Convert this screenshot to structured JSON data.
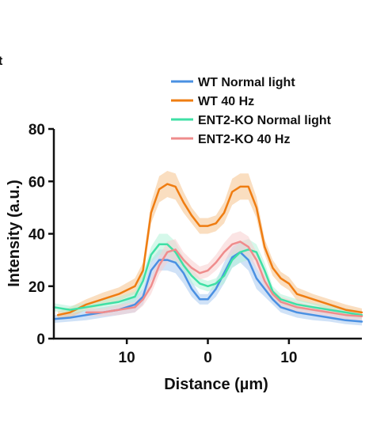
{
  "panel_mark": "t",
  "chart_data": {
    "type": "line",
    "xlabel": "Distance (µm)",
    "ylabel": "Intensity (a.u.)",
    "xlim": [
      -19,
      19
    ],
    "ylim": [
      0,
      80
    ],
    "x_ticks": [
      -10,
      0,
      10
    ],
    "x_tick_labels": [
      "10",
      "0",
      "10"
    ],
    "y_ticks": [
      0,
      20,
      40,
      60,
      80
    ],
    "y_tick_labels": [
      "0",
      "20",
      "40",
      "60",
      "80"
    ],
    "grid": false,
    "legend_position": "top-right",
    "x": [
      -19,
      -17,
      -15,
      -13,
      -11,
      -9,
      -8,
      -7,
      -6,
      -5,
      -4,
      -3,
      -2,
      -1,
      0,
      1,
      2,
      3,
      4,
      5,
      6,
      7,
      8,
      9,
      10,
      11,
      13,
      15,
      17,
      19
    ],
    "series": [
      {
        "name": "WT Normal light",
        "color": "#4a90e2",
        "band_color": "#a9cbf1",
        "values": [
          7.5,
          8,
          9,
          10,
          11,
          13,
          16,
          26,
          30,
          30,
          29,
          25,
          19,
          15,
          15,
          19,
          25,
          31,
          33,
          30,
          23,
          19,
          15,
          12,
          11,
          10,
          9,
          8,
          7,
          6.5
        ],
        "spread": [
          1.5,
          1.5,
          2,
          2,
          2,
          3,
          3,
          4,
          4,
          4,
          4,
          4,
          3,
          2,
          2,
          3,
          4,
          4,
          4,
          4,
          4,
          3,
          2,
          2,
          2,
          2,
          2,
          1.5,
          1.5,
          1.5
        ]
      },
      {
        "name": "WT 40 Hz",
        "color": "#ef7d12",
        "band_color": "#f6c28c",
        "values": [
          9,
          10,
          13,
          15,
          17,
          20,
          26,
          48,
          57,
          59,
          58,
          52,
          47,
          43,
          43,
          44,
          48,
          56,
          58,
          58,
          50,
          35,
          27,
          23,
          21,
          17,
          15,
          13,
          11,
          10
        ],
        "spread": [
          1.5,
          2,
          2,
          2.5,
          2.5,
          3,
          3,
          4,
          5,
          5,
          5,
          4,
          3,
          3,
          3,
          3,
          4,
          5,
          5,
          5,
          4,
          3,
          3,
          2.5,
          2.5,
          2.5,
          2,
          2,
          2,
          1.5
        ],
        "x_start": -18.5
      },
      {
        "name": "ENT2-KO Normal light",
        "color": "#3fe0a5",
        "band_color": "#b3f2d9",
        "values": [
          12,
          11,
          12,
          13,
          14,
          16,
          22,
          32,
          36,
          36,
          33,
          28,
          24,
          21,
          20,
          21,
          24,
          30,
          33,
          34,
          33,
          26,
          18,
          15,
          14,
          13,
          12,
          11,
          10,
          9
        ],
        "spread": [
          1.5,
          1.5,
          1.5,
          2,
          2,
          2,
          3,
          3,
          4,
          4,
          4,
          3,
          3,
          2,
          2,
          2,
          3,
          3,
          4,
          4,
          3,
          3,
          2,
          2,
          2,
          2,
          1.5,
          1.5,
          1.5,
          1.5
        ]
      },
      {
        "name": "ENT2-KO 40 Hz",
        "color": "#ef8c8c",
        "band_color": "#f8cdcd",
        "values": [
          null,
          null,
          10,
          10,
          11,
          12,
          15,
          20,
          28,
          33,
          34,
          30,
          27,
          25,
          26,
          29,
          33,
          36,
          37,
          35,
          30,
          22,
          17,
          14,
          13,
          12,
          11,
          10,
          9,
          8.5
        ],
        "spread": [
          0,
          0,
          1.5,
          1.5,
          2,
          2,
          2.5,
          3,
          3.5,
          4,
          4,
          3,
          3,
          2.5,
          2.5,
          3,
          3.5,
          4,
          4,
          4,
          3,
          2.5,
          2,
          2,
          2,
          2,
          1.5,
          1.5,
          1.5,
          1.5
        ]
      }
    ]
  }
}
